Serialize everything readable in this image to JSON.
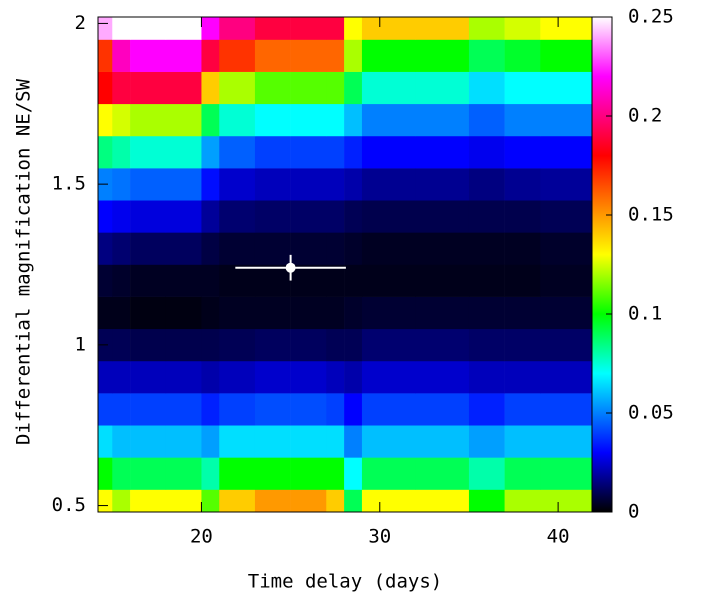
{
  "chart_data": {
    "type": "heatmap",
    "x_label": "Time delay (days)",
    "y_label": "Differential magnification NE/SW",
    "x_bins": [
      14.2,
      15,
      16,
      18,
      20,
      21,
      23,
      25,
      27,
      28,
      29,
      32,
      35,
      37,
      39,
      41.9
    ],
    "y_bins": [
      0.48,
      0.55,
      0.65,
      0.75,
      0.85,
      0.95,
      1.05,
      1.15,
      1.25,
      1.35,
      1.45,
      1.55,
      1.65,
      1.75,
      1.85,
      1.95,
      2.02
    ],
    "z": [
      [
        0.13,
        0.12,
        0.13,
        0.13,
        0.11,
        0.14,
        0.15,
        0.15,
        0.14,
        0.09,
        0.13,
        0.13,
        0.1,
        0.12,
        0.12
      ],
      [
        0.1,
        0.09,
        0.09,
        0.09,
        0.08,
        0.1,
        0.1,
        0.1,
        0.1,
        0.07,
        0.09,
        0.09,
        0.08,
        0.09,
        0.09
      ],
      [
        0.065,
        0.06,
        0.06,
        0.06,
        0.055,
        0.065,
        0.065,
        0.065,
        0.065,
        0.05,
        0.06,
        0.06,
        0.055,
        0.06,
        0.06
      ],
      [
        0.04,
        0.04,
        0.04,
        0.04,
        0.035,
        0.04,
        0.042,
        0.042,
        0.04,
        0.03,
        0.04,
        0.04,
        0.035,
        0.04,
        0.04
      ],
      [
        0.022,
        0.022,
        0.022,
        0.022,
        0.02,
        0.022,
        0.024,
        0.024,
        0.022,
        0.02,
        0.024,
        0.024,
        0.022,
        0.022,
        0.022
      ],
      [
        0.01,
        0.01,
        0.009,
        0.009,
        0.009,
        0.01,
        0.011,
        0.011,
        0.01,
        0.01,
        0.013,
        0.013,
        0.012,
        0.012,
        0.012
      ],
      [
        0.003,
        0.003,
        0.002,
        0.002,
        0.003,
        0.004,
        0.004,
        0.004,
        0.004,
        0.005,
        0.006,
        0.006,
        0.006,
        0.006,
        0.006
      ],
      [
        0.006,
        0.005,
        0.004,
        0.004,
        0.004,
        0.003,
        0.003,
        0.003,
        0.003,
        0.003,
        0.003,
        0.003,
        0.003,
        0.003,
        0.004
      ],
      [
        0.015,
        0.013,
        0.011,
        0.011,
        0.008,
        0.006,
        0.006,
        0.006,
        0.006,
        0.005,
        0.004,
        0.004,
        0.004,
        0.004,
        0.005
      ],
      [
        0.03,
        0.028,
        0.026,
        0.026,
        0.018,
        0.013,
        0.012,
        0.012,
        0.012,
        0.01,
        0.009,
        0.009,
        0.009,
        0.009,
        0.01
      ],
      [
        0.05,
        0.048,
        0.045,
        0.045,
        0.032,
        0.024,
        0.022,
        0.022,
        0.022,
        0.02,
        0.017,
        0.017,
        0.015,
        0.017,
        0.018
      ],
      [
        0.085,
        0.08,
        0.075,
        0.075,
        0.055,
        0.045,
        0.04,
        0.04,
        0.04,
        0.035,
        0.03,
        0.03,
        0.028,
        0.03,
        0.03
      ],
      [
        0.13,
        0.125,
        0.12,
        0.12,
        0.09,
        0.075,
        0.07,
        0.07,
        0.07,
        0.06,
        0.05,
        0.05,
        0.045,
        0.05,
        0.05
      ],
      [
        0.18,
        0.19,
        0.19,
        0.19,
        0.14,
        0.12,
        0.11,
        0.11,
        0.11,
        0.09,
        0.075,
        0.075,
        0.065,
        0.07,
        0.07
      ],
      [
        0.17,
        0.21,
        0.22,
        0.22,
        0.19,
        0.17,
        0.16,
        0.16,
        0.16,
        0.12,
        0.1,
        0.1,
        0.09,
        0.095,
        0.1
      ],
      [
        0.24,
        0.25,
        0.25,
        0.25,
        0.22,
        0.2,
        0.19,
        0.19,
        0.19,
        0.13,
        0.14,
        0.14,
        0.12,
        0.125,
        0.13
      ]
    ],
    "xlim": [
      14.2,
      41.9
    ],
    "xticks": [
      20,
      30,
      40
    ],
    "ylim": [
      0.48,
      2.02
    ],
    "yticks": [
      0.5,
      1,
      1.5,
      2
    ],
    "clim": [
      0,
      0.25
    ],
    "cticks": [
      0,
      0.05,
      0.1,
      0.15,
      0.2,
      0.25
    ],
    "colorscale": [
      [
        0,
        "#000000"
      ],
      [
        0.03,
        "#0000ff"
      ],
      [
        0.07,
        "#00ffff"
      ],
      [
        0.1,
        "#00ff00"
      ],
      [
        0.13,
        "#ffff00"
      ],
      [
        0.18,
        "#ff0000"
      ],
      [
        0.22,
        "#ff00ff"
      ],
      [
        0.25,
        "#ffffff"
      ]
    ],
    "point": {
      "x": 25,
      "y": 1.24,
      "xerr": 3.1,
      "yerr": 0.04,
      "color": "#ffffff"
    }
  }
}
